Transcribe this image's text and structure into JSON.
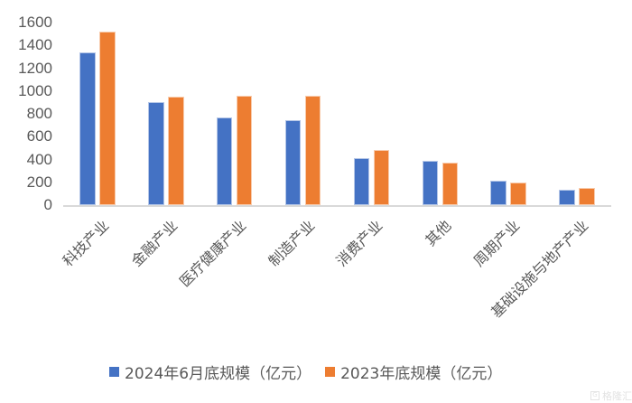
{
  "chart_data": {
    "type": "bar",
    "title": "",
    "xlabel": "",
    "ylabel": "",
    "ylim": [
      0,
      1600
    ],
    "yticks": [
      0,
      200,
      400,
      600,
      800,
      1000,
      1200,
      1400,
      1600
    ],
    "grid": false,
    "legend_position": "bottom",
    "categories": [
      "科技产业",
      "金融产业",
      "医疗健康产业",
      "制造产业",
      "消费产业",
      "其他",
      "周期产业",
      "基础设施与地产产业"
    ],
    "series": [
      {
        "name": "2024年6月底规模（亿元）",
        "color": "#4472C4",
        "values": [
          1335,
          900,
          770,
          745,
          410,
          390,
          210,
          135
        ]
      },
      {
        "name": "2023年底规模（亿元）",
        "color": "#ED7D31",
        "values": [
          1520,
          950,
          960,
          960,
          483,
          375,
          195,
          150
        ]
      }
    ]
  },
  "yaxis": {
    "ticks": [
      "0",
      "200",
      "400",
      "600",
      "800",
      "1000",
      "1200",
      "1400",
      "1600"
    ]
  },
  "legend": {
    "items": [
      {
        "label": "2024年6月底规模（亿元）",
        "color": "#4472C4"
      },
      {
        "label": "2023年底规模（亿元）",
        "color": "#ED7D31"
      }
    ]
  },
  "watermark": {
    "icon": "G",
    "text": "格隆汇"
  }
}
